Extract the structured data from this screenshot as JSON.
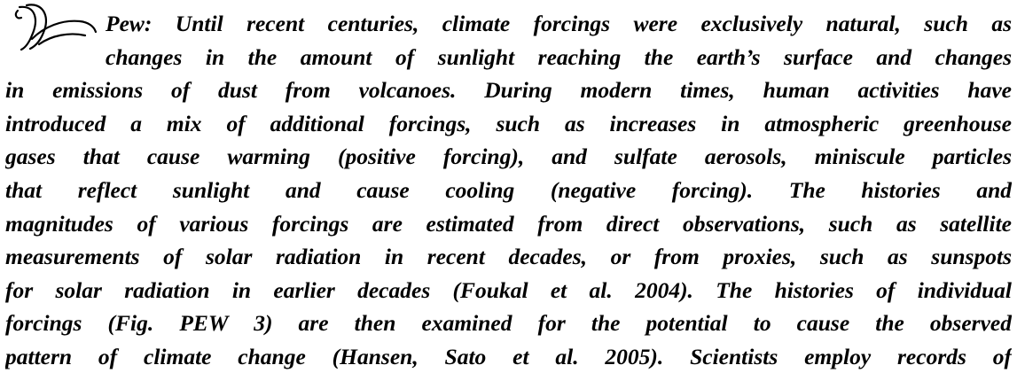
{
  "paragraph": {
    "lines": [
      "Pew: Until recent centuries, climate forcings were exclusively natural, such as",
      "changes in the amount of sunlight reaching the earth’s surface and changes",
      "in emissions of dust from volcanoes. During modern times, human activities have",
      "introduced a mix of additional forcings, such as increases in atmospheric greenhouse",
      "gases that cause warming (positive forcing), and sulfate aerosols, miniscule particles",
      "that reflect sunlight and cause cooling (negative forcing). The histories and",
      "magnitudes of various forcings are estimated from direct observations, such as satellite",
      "measurements of solar radiation in recent decades, or from proxies, such as sunspots",
      "for solar radiation in earlier decades (Foukal et al. 2004). The histories of individual",
      "forcings (Fig. PEW 3) are then examined for the potential to cause the observed",
      "pattern of climate change (Hansen, Sato et al. 2005). Scientists employ records of"
    ]
  }
}
